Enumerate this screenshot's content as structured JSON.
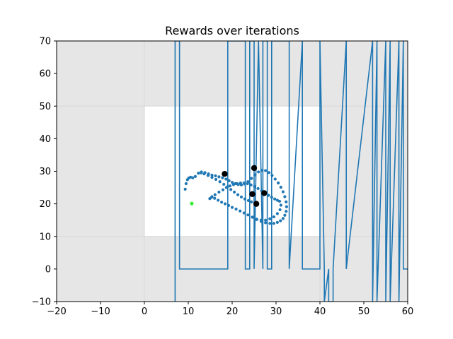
{
  "chart_data": {
    "type": "line",
    "title": "Rewards over iterations",
    "xlabel": "",
    "ylabel": "",
    "xlim": [
      -20,
      60
    ],
    "ylim": [
      -10,
      70
    ],
    "xticks": [
      -20,
      -10,
      0,
      10,
      20,
      30,
      40,
      50,
      60
    ],
    "yticks": [
      -10,
      0,
      10,
      20,
      30,
      40,
      50,
      60,
      70
    ],
    "tick_labels_x": [
      "−20",
      "−10",
      "0",
      "10",
      "20",
      "30",
      "40",
      "50",
      "60"
    ],
    "tick_labels_y": [
      "−10",
      "0",
      "10",
      "20",
      "30",
      "40",
      "50",
      "60",
      "70"
    ],
    "grid": false,
    "regions": [
      {
        "name": "outer-area",
        "x": [
          -20,
          60
        ],
        "y": [
          -10,
          70
        ],
        "color": "#e6e6e6"
      },
      {
        "name": "inner-area",
        "x": [
          0,
          40
        ],
        "y": [
          10,
          50
        ],
        "color": "#ffffff"
      }
    ],
    "reward_line": {
      "color": "#1f77b4",
      "x": [
        7,
        7,
        8,
        8,
        19,
        19,
        23,
        23,
        24,
        24,
        25,
        25,
        26,
        26,
        27,
        27,
        28,
        28,
        29,
        29,
        33,
        33,
        36,
        36,
        40,
        40,
        41,
        41,
        42,
        42,
        43,
        43,
        46,
        46,
        52,
        52,
        53,
        53,
        55,
        55,
        56,
        56,
        58,
        58,
        59,
        59,
        60
      ],
      "y": [
        -10,
        70,
        70,
        0,
        0,
        70,
        70,
        0,
        0,
        70,
        70,
        0,
        70,
        70,
        0,
        70,
        70,
        0,
        0,
        70,
        70,
        0,
        70,
        0,
        0,
        70,
        0,
        -10,
        0,
        -10,
        -10,
        0,
        70,
        0,
        70,
        -10,
        70,
        -10,
        70,
        -10,
        70,
        -10,
        70,
        -10,
        70,
        0,
        0
      ]
    },
    "trajectory_points": {
      "color": "#1f77b4",
      "x": [
        9.3,
        9.5,
        9.8,
        10.1,
        10.5,
        11.0,
        11.6,
        12.3,
        13.0,
        13.8,
        14.6,
        15.4,
        16.2,
        17.0,
        17.8,
        18.6,
        19.3,
        20.0,
        20.7,
        21.4,
        22.1,
        22.8,
        23.6,
        24.4,
        25.2,
        26.0,
        26.8,
        27.6,
        28.4,
        29.1,
        29.8,
        30.5,
        31.1,
        31.6,
        32.0,
        32.3,
        32.4,
        32.3,
        32.0,
        31.6,
        31.0,
        30.3,
        29.5,
        28.6,
        27.6,
        26.6,
        25.6,
        24.6,
        23.6,
        22.7,
        21.8,
        20.9,
        20.0,
        19.2,
        18.4,
        17.6,
        16.8,
        16.0,
        15.4,
        14.9,
        15.3,
        16.1,
        17.0,
        17.9,
        18.7,
        19.5,
        20.3,
        21.1,
        21.9,
        22.7,
        23.5,
        24.3,
        25.1,
        25.9,
        26.7,
        27.5,
        28.3,
        29.0,
        29.7,
        30.3,
        30.8,
        31.1,
        30.9,
        30.3,
        29.5,
        28.6,
        27.6,
        26.6,
        25.6,
        24.7,
        12.9,
        13.6,
        14.5,
        15.4,
        16.3,
        17.2,
        18.1,
        18.9,
        19.7,
        20.5,
        21.3,
        22.1,
        22.9,
        23.7,
        24.4
      ],
      "y": [
        24.5,
        26.2,
        27.4,
        27.9,
        28.2,
        28.0,
        28.4,
        29.4,
        29.8,
        29.6,
        29.2,
        28.8,
        28.6,
        28.3,
        28.0,
        27.6,
        27.1,
        26.6,
        26.2,
        25.9,
        25.8,
        26.1,
        26.8,
        27.8,
        28.9,
        29.8,
        30.3,
        30.2,
        29.6,
        28.7,
        27.6,
        26.4,
        25.1,
        23.7,
        22.2,
        20.6,
        19.1,
        17.7,
        16.5,
        15.5,
        14.8,
        14.3,
        14.0,
        14.0,
        14.2,
        14.6,
        15.2,
        15.9,
        16.6,
        17.2,
        17.8,
        18.4,
        18.9,
        19.5,
        20.0,
        20.5,
        21.1,
        21.7,
        22.2,
        21.6,
        22.0,
        22.8,
        23.6,
        24.3,
        25.0,
        25.5,
        25.9,
        26.2,
        26.4,
        26.4,
        26.2,
        25.8,
        25.3,
        24.7,
        24.0,
        23.3,
        22.6,
        22.0,
        21.5,
        21.1,
        20.8,
        19.6,
        18.2,
        17.0,
        16.0,
        15.4,
        15.0,
        15.0,
        15.3,
        15.9,
        29.5,
        29.2,
        28.7,
        28.1,
        27.5,
        26.8,
        26.0,
        25.2,
        24.4,
        23.6,
        22.8,
        22.1,
        21.5,
        21.0,
        20.6
      ]
    },
    "key_points": {
      "color": "#000000",
      "x": [
        18.3,
        25.0,
        24.6,
        27.3,
        25.5
      ],
      "y": [
        29.2,
        31.0,
        23.0,
        23.3,
        20.0
      ]
    },
    "start_point": {
      "color": "#33ee33",
      "x": 10.8,
      "y": 20.1
    },
    "colors": {
      "axis": "#000000",
      "outer_bg": "#e6e6e6",
      "inner_bg": "#ffffff",
      "line": "#1f77b4",
      "gridline_faint": "#d8d8d8"
    }
  }
}
